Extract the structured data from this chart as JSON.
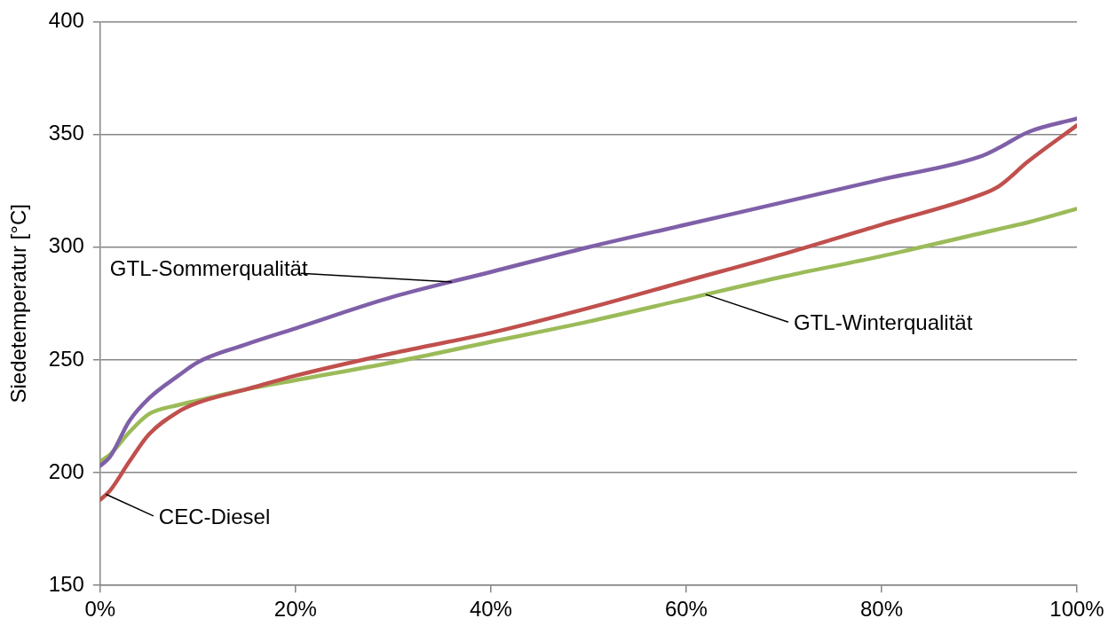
{
  "chart_data": {
    "type": "line",
    "ylabel": "Siedetemperatur [°C]",
    "x": [
      0,
      1,
      3,
      5,
      8,
      10,
      15,
      20,
      30,
      40,
      50,
      60,
      70,
      80,
      90,
      92,
      95,
      100
    ],
    "series": [
      {
        "name": "GTL-Sommerqualität",
        "color": "#7f60a8",
        "values": [
          203,
          207,
          223,
          233,
          243,
          249,
          257,
          264,
          278,
          289,
          300,
          310,
          320,
          330,
          340,
          344,
          351,
          357
        ]
      },
      {
        "name": "CEC-Diesel",
        "color": "#c0504d",
        "values": [
          188,
          192,
          205,
          217,
          227,
          231,
          237,
          243,
          253,
          262,
          273,
          285,
          297,
          310,
          323,
          327,
          338,
          354
        ]
      },
      {
        "name": "GTL-Winterqualität",
        "color": "#9bbb59",
        "values": [
          205,
          208,
          218,
          226,
          230,
          232,
          237,
          241,
          249,
          258,
          267,
          277,
          287,
          296,
          306,
          308,
          311,
          317
        ]
      }
    ],
    "xlim": [
      0,
      100
    ],
    "xticks": [
      {
        "value": 0,
        "label": "0%"
      },
      {
        "value": 20,
        "label": "20%"
      },
      {
        "value": 40,
        "label": "40%"
      },
      {
        "value": 60,
        "label": "60%"
      },
      {
        "value": 80,
        "label": "80%"
      },
      {
        "value": 100,
        "label": "100%"
      }
    ],
    "ylim": [
      150,
      400
    ],
    "yticks": [
      150,
      200,
      250,
      300,
      350,
      400
    ],
    "grid": "y",
    "legend": false,
    "marker": "none",
    "line_style": "solid"
  }
}
